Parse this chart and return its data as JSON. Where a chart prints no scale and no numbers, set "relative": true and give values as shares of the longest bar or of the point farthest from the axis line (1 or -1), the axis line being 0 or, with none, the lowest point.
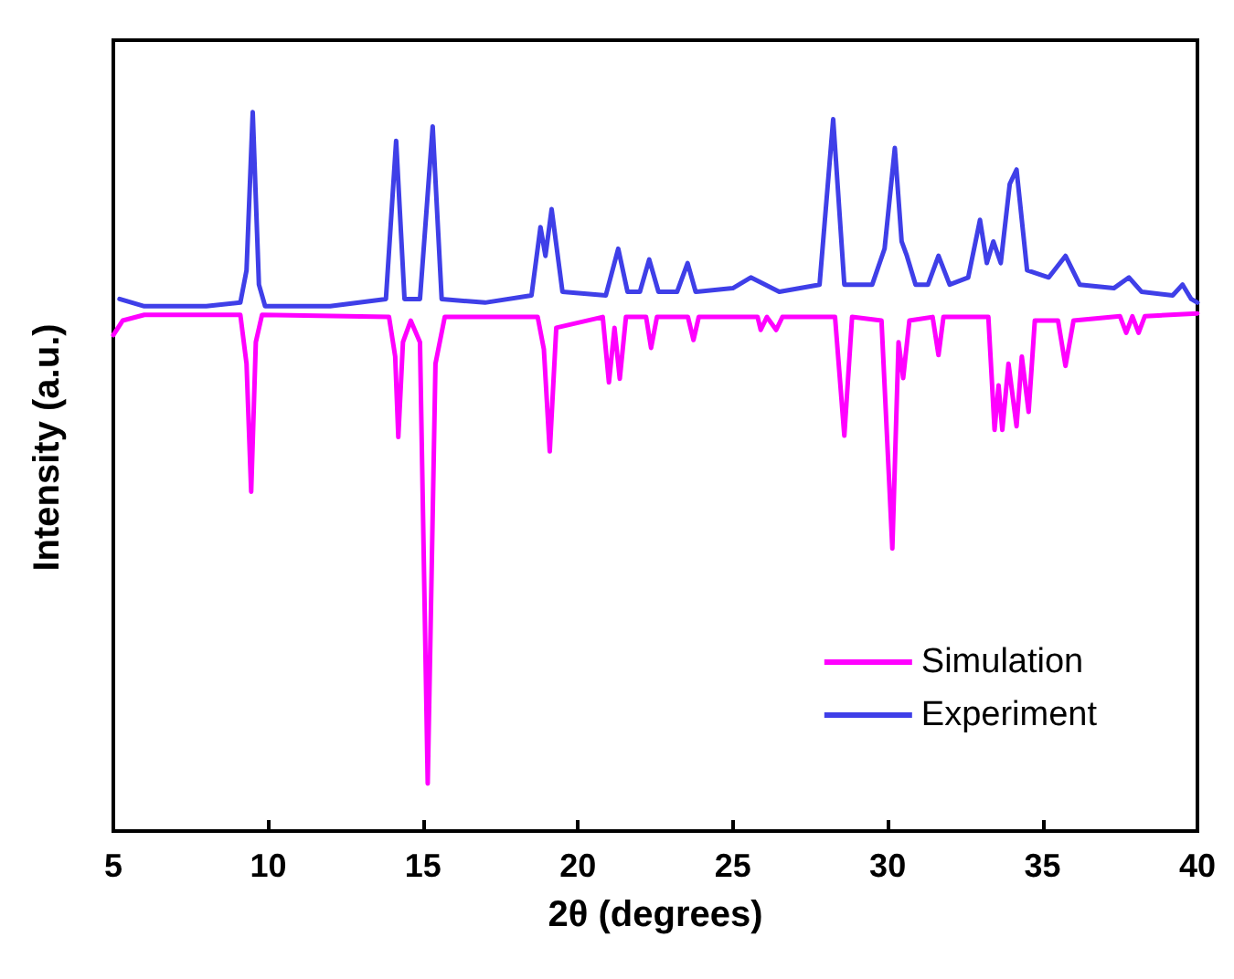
{
  "chart_data": {
    "type": "line",
    "xlabel": "2θ (degrees)",
    "ylabel": "Intensity (a.u.)",
    "relative": true,
    "xlim": [
      5,
      40
    ],
    "xticks": [
      5,
      10,
      15,
      20,
      25,
      30,
      35,
      40
    ],
    "grid": false,
    "legend": "bottom right",
    "marker": "none",
    "line_style": "solid",
    "series": [
      {
        "name": "Simulation",
        "color": "#ff00ff",
        "x": [
          5.0,
          5.3,
          6,
          9.1,
          9.3,
          9.45,
          9.6,
          9.8,
          13.9,
          14.1,
          14.2,
          14.35,
          14.6,
          14.9,
          15.15,
          15.4,
          15.7,
          18.7,
          18.9,
          19.09,
          19.3,
          20.8,
          21.0,
          21.18,
          21.35,
          21.55,
          22.2,
          22.36,
          22.55,
          23.55,
          23.73,
          23.9,
          25.8,
          25.9,
          26.1,
          26.4,
          26.6,
          28.3,
          28.6,
          28.85,
          29.8,
          30.15,
          30.35,
          30.5,
          30.7,
          31.45,
          31.64,
          31.8,
          33.25,
          33.45,
          33.58,
          33.7,
          33.9,
          34.16,
          34.33,
          34.55,
          34.75,
          35.5,
          35.74,
          36.0,
          37.5,
          37.7,
          37.9,
          38.1,
          38.3,
          40
        ],
        "values": [
          0.69,
          0.71,
          0.718,
          0.718,
          0.65,
          0.472,
          0.68,
          0.718,
          0.715,
          0.66,
          0.548,
          0.68,
          0.71,
          0.68,
          0.066,
          0.65,
          0.715,
          0.715,
          0.67,
          0.528,
          0.7,
          0.715,
          0.624,
          0.7,
          0.629,
          0.715,
          0.715,
          0.672,
          0.715,
          0.715,
          0.683,
          0.715,
          0.715,
          0.697,
          0.715,
          0.697,
          0.715,
          0.715,
          0.55,
          0.715,
          0.71,
          0.393,
          0.68,
          0.63,
          0.71,
          0.715,
          0.662,
          0.715,
          0.715,
          0.558,
          0.62,
          0.558,
          0.65,
          0.563,
          0.66,
          0.583,
          0.71,
          0.71,
          0.647,
          0.71,
          0.716,
          0.693,
          0.716,
          0.693,
          0.716,
          0.72
        ]
      },
      {
        "name": "Experiment",
        "color": "#3f3fe8",
        "x": [
          5.2,
          6,
          8,
          9.1,
          9.3,
          9.5,
          9.7,
          9.9,
          12,
          13.8,
          14.13,
          14.4,
          14.9,
          15.31,
          15.6,
          17,
          18.5,
          18.79,
          18.95,
          19.15,
          19.5,
          20.9,
          21.3,
          21.6,
          22.0,
          22.3,
          22.6,
          23.2,
          23.54,
          23.8,
          25.0,
          25.58,
          26.5,
          27.8,
          28.24,
          28.6,
          29.5,
          29.9,
          30.23,
          30.45,
          30.62,
          30.9,
          31.3,
          31.64,
          32.0,
          32.6,
          32.98,
          33.2,
          33.41,
          33.65,
          33.94,
          34.16,
          34.5,
          35.2,
          35.74,
          36.2,
          37.3,
          37.79,
          38.2,
          39.2,
          39.52,
          39.8,
          40
        ],
        "values": [
          0.74,
          0.73,
          0.73,
          0.735,
          0.78,
          1.0,
          0.76,
          0.73,
          0.73,
          0.74,
          0.96,
          0.74,
          0.74,
          0.98,
          0.74,
          0.735,
          0.745,
          0.84,
          0.8,
          0.865,
          0.75,
          0.745,
          0.81,
          0.75,
          0.75,
          0.795,
          0.75,
          0.75,
          0.79,
          0.75,
          0.755,
          0.77,
          0.75,
          0.76,
          0.99,
          0.76,
          0.76,
          0.81,
          0.95,
          0.82,
          0.8,
          0.76,
          0.76,
          0.8,
          0.76,
          0.77,
          0.85,
          0.79,
          0.82,
          0.79,
          0.9,
          0.92,
          0.78,
          0.77,
          0.8,
          0.76,
          0.755,
          0.77,
          0.75,
          0.745,
          0.76,
          0.74,
          0.735
        ]
      }
    ]
  }
}
